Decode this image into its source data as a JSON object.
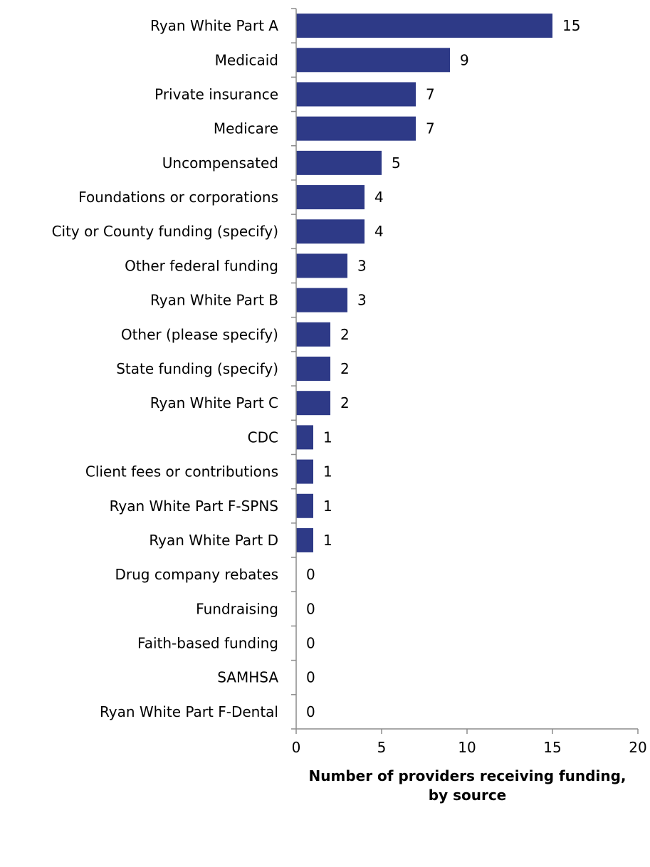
{
  "chart_data": {
    "type": "bar",
    "orientation": "horizontal",
    "categories": [
      "Ryan White Part A",
      "Medicaid",
      "Private insurance",
      "Medicare",
      "Uncompensated",
      "Foundations or corporations",
      "City or County funding (specify)",
      "Other federal funding",
      "Ryan White Part B",
      "Other (please specify)",
      "State funding (specify)",
      "Ryan White Part C",
      "CDC",
      "Client fees or contributions",
      "Ryan White Part F-SPNS",
      "Ryan White Part D",
      "Drug company rebates",
      "Fundraising",
      "Faith-based funding",
      "SAMHSA",
      "Ryan White Part F-Dental"
    ],
    "values": [
      15,
      9,
      7,
      7,
      5,
      4,
      4,
      3,
      3,
      2,
      2,
      2,
      1,
      1,
      1,
      1,
      0,
      0,
      0,
      0,
      0
    ],
    "xlim": [
      0,
      20
    ],
    "x_ticks": [
      0,
      5,
      10,
      15,
      20
    ],
    "xlabel_line1": "Number of providers receiving funding,",
    "xlabel_line2": "by source",
    "bar_color": "#2E3A87",
    "data_labels": true,
    "grid": false,
    "legend": "none"
  }
}
